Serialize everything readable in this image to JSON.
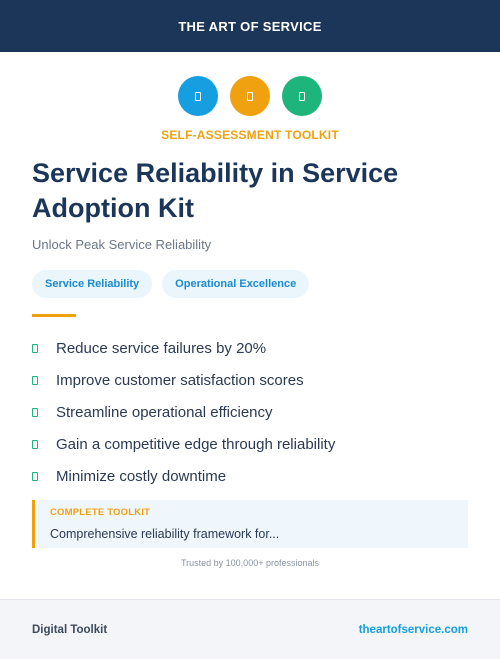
{
  "header": {
    "brand": "THE ART OF SERVICE"
  },
  "icons": [
    {
      "name": "document-icon",
      "color": "#159fe0"
    },
    {
      "name": "document-icon",
      "color": "#f0a110"
    },
    {
      "name": "document-icon",
      "color": "#1db57c"
    }
  ],
  "eyebrow": "SELF-ASSESSMENT TOOLKIT",
  "title": "Service Reliability in Service Adoption Kit",
  "subtitle": "Unlock Peak Service Reliability",
  "tags": [
    "Service Reliability",
    "Operational Excellence"
  ],
  "benefits": [
    "Reduce service failures by 20%",
    "Improve customer satisfaction scores",
    "Streamline operational efficiency",
    "Gain a competitive edge through reliability",
    "Minimize costly downtime"
  ],
  "callout": {
    "label": "COMPLETE TOOLKIT",
    "text": "Comprehensive reliability framework for..."
  },
  "trusted": "Trusted by 100,000+ professionals",
  "footer": {
    "left": "Digital Toolkit",
    "right": "theartofservice.com"
  },
  "colors": {
    "navy": "#1c3659",
    "accent_orange": "#f0a110",
    "accent_blue": "#159fe0",
    "accent_green": "#1db57c"
  }
}
